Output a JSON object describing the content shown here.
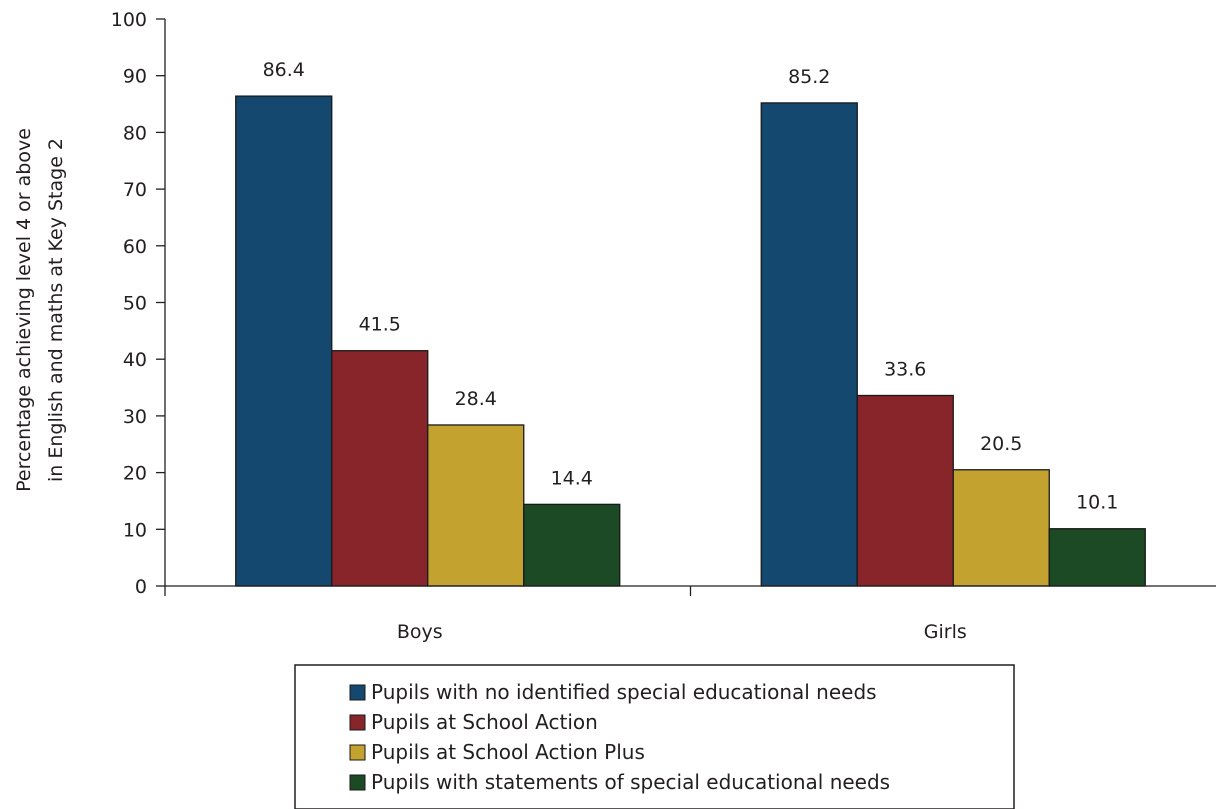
{
  "chart_data": {
    "type": "bar",
    "categories": [
      "Boys",
      "Girls"
    ],
    "series": [
      {
        "name": "Pupils with no identified special educational needs",
        "values": [
          86.4,
          85.2
        ],
        "color": "#14486e"
      },
      {
        "name": "Pupils at School Action",
        "values": [
          41.5,
          33.6
        ],
        "color": "#88252b"
      },
      {
        "name": "Pupils at School Action Plus",
        "values": [
          28.4,
          20.5
        ],
        "color": "#c3a230"
      },
      {
        "name": "Pupils with statements of special educational needs",
        "values": [
          14.4,
          10.1
        ],
        "color": "#1b4a24"
      }
    ],
    "ylabel_lines": [
      "Percentage achieving level 4 or above",
      "in English and maths at Key Stage 2"
    ],
    "ylim": [
      0,
      100
    ],
    "yticks": [
      0,
      10,
      20,
      30,
      40,
      50,
      60,
      70,
      80,
      90,
      100
    ],
    "legend_position": "bottom",
    "grid": false
  }
}
